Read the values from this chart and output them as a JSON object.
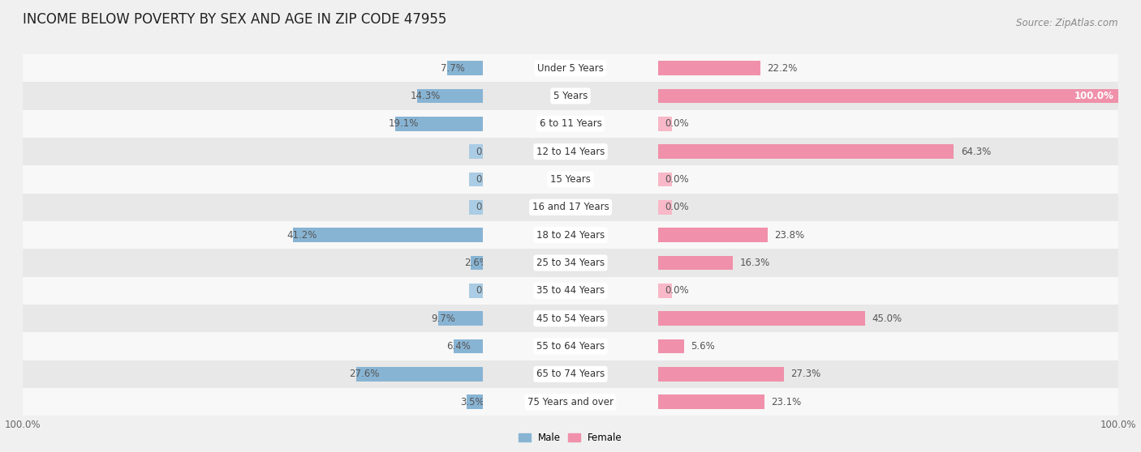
{
  "title": "INCOME BELOW POVERTY BY SEX AND AGE IN ZIP CODE 47955",
  "source": "Source: ZipAtlas.com",
  "categories": [
    "Under 5 Years",
    "5 Years",
    "6 to 11 Years",
    "12 to 14 Years",
    "15 Years",
    "16 and 17 Years",
    "18 to 24 Years",
    "25 to 34 Years",
    "35 to 44 Years",
    "45 to 54 Years",
    "55 to 64 Years",
    "65 to 74 Years",
    "75 Years and over"
  ],
  "male_values": [
    7.7,
    14.3,
    19.1,
    0.0,
    0.0,
    0.0,
    41.2,
    2.6,
    0.0,
    9.7,
    6.4,
    27.6,
    3.5
  ],
  "female_values": [
    22.2,
    100.0,
    0.0,
    64.3,
    0.0,
    0.0,
    23.8,
    16.3,
    0.0,
    45.0,
    5.6,
    27.3,
    23.1
  ],
  "male_color": "#88b4d4",
  "female_color": "#f090aa",
  "male_color_light": "#aacce4",
  "female_color_light": "#f8b8c8",
  "bar_height": 0.52,
  "background_color": "#f0f0f0",
  "row_color_odd": "#f8f8f8",
  "row_color_even": "#e8e8e8",
  "xlim": 100,
  "title_fontsize": 12,
  "label_fontsize": 8.5,
  "cat_fontsize": 8.5,
  "tick_fontsize": 8.5,
  "source_fontsize": 8.5
}
